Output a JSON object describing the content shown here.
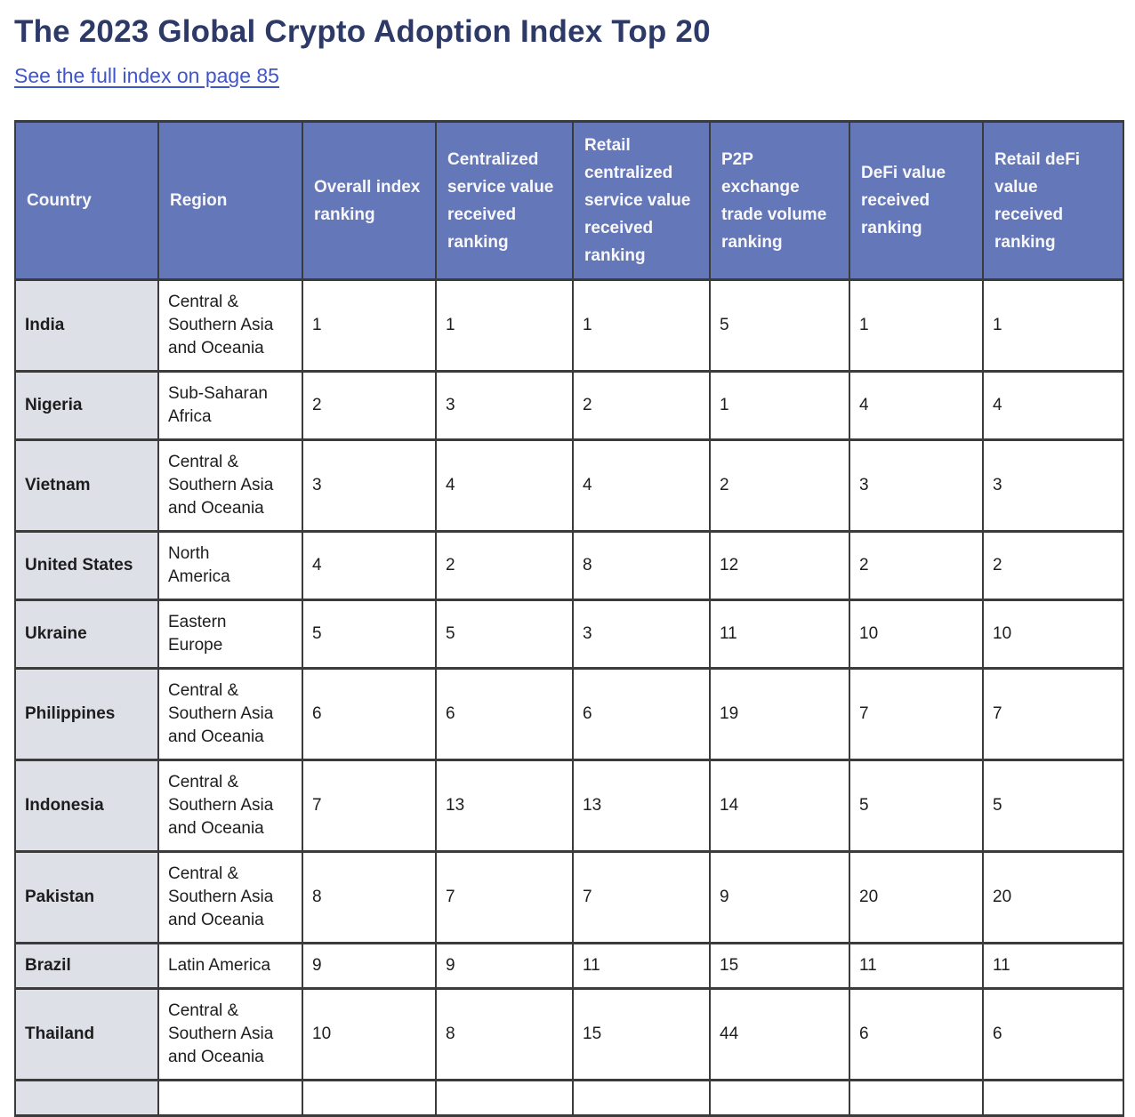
{
  "page": {
    "title": "The 2023 Global Crypto Adoption Index Top 20",
    "link_text": "See the full index on page 85"
  },
  "colors": {
    "title_text": "#2d3a68",
    "link_text": "#4155cb",
    "header_bg": "#6477b9",
    "header_text": "#f8f8fa",
    "country_col_bg": "#dee0e8",
    "body_bg": "#ffffff",
    "border": "#3b3b3b",
    "body_text": "#1d1d1d"
  },
  "table": {
    "columns": [
      "Country",
      "Region",
      "Overall index\nranking",
      "Centralized\nservice value\nreceived\nranking",
      "Retail\ncentralized\nservice value\nreceived\nranking",
      "P2P\nexchange\ntrade volume\nranking",
      "DeFi value\nreceived\nranking",
      "Retail deFi\nvalue\nreceived\nranking"
    ],
    "rows": [
      {
        "country": "India",
        "region": "Central &\nSouthern Asia\nand Oceania",
        "rankings": [
          "1",
          "1",
          "1",
          "5",
          "1",
          "1"
        ]
      },
      {
        "country": "Nigeria",
        "region": "Sub-Saharan\nAfrica",
        "rankings": [
          "2",
          "3",
          "2",
          "1",
          "4",
          "4"
        ]
      },
      {
        "country": "Vietnam",
        "region": "Central &\nSouthern Asia\nand Oceania",
        "rankings": [
          "3",
          "4",
          "4",
          "2",
          "3",
          "3"
        ]
      },
      {
        "country": "United States",
        "region": "North\nAmerica",
        "rankings": [
          "4",
          "2",
          "8",
          "12",
          "2",
          "2"
        ]
      },
      {
        "country": "Ukraine",
        "region": "Eastern\nEurope",
        "rankings": [
          "5",
          "5",
          "3",
          "11",
          "10",
          "10"
        ]
      },
      {
        "country": "Philippines",
        "region": "Central &\nSouthern Asia\nand Oceania",
        "rankings": [
          "6",
          "6",
          "6",
          "19",
          "7",
          "7"
        ]
      },
      {
        "country": "Indonesia",
        "region": "Central &\nSouthern Asia\nand Oceania",
        "rankings": [
          "7",
          "13",
          "13",
          "14",
          "5",
          "5"
        ]
      },
      {
        "country": "Pakistan",
        "region": "Central &\nSouthern Asia\nand Oceania",
        "rankings": [
          "8",
          "7",
          "7",
          "9",
          "20",
          "20"
        ]
      },
      {
        "country": "Brazil",
        "region": "Latin America",
        "rankings": [
          "9",
          "9",
          "11",
          "15",
          "11",
          "11"
        ]
      },
      {
        "country": "Thailand",
        "region": "Central &\nSouthern Asia\nand Oceania",
        "rankings": [
          "10",
          "8",
          "15",
          "44",
          "6",
          "6"
        ]
      }
    ],
    "partial_row_visible": true
  }
}
